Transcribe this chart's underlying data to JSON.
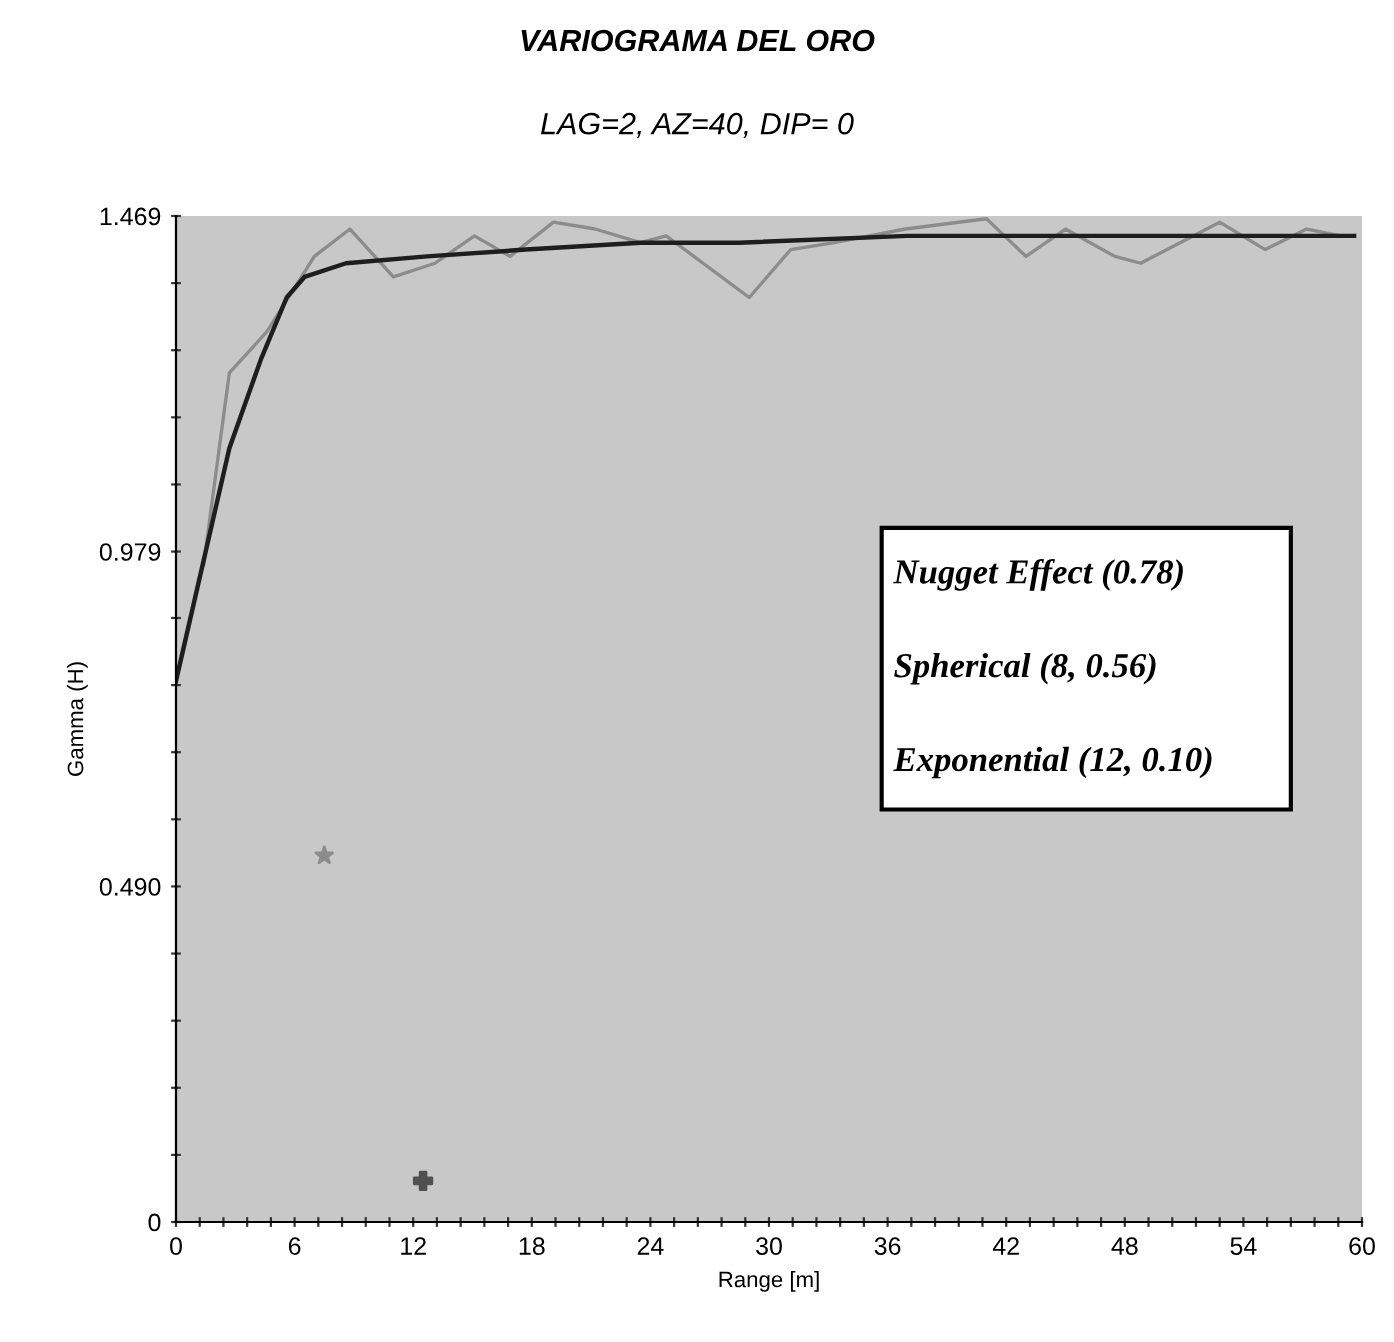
{
  "chart_data": {
    "type": "line",
    "title": "VARIOGRAMA DEL ORO",
    "subtitle": "LAG=2, AZ=40, DIP= 0",
    "xlabel": "Range [m]",
    "ylabel": "Gamma (H)",
    "series": [
      {
        "color": "#8c8c8c",
        "x": [
          1.4,
          2.7,
          4.6,
          7.0,
          8.8,
          11.0,
          13.1,
          15.1,
          16.9,
          19.1,
          21.2,
          23.5,
          24.8,
          29.0,
          31.1,
          33.3,
          36.9,
          41.0,
          43.0,
          45.0,
          47.5,
          48.8,
          52.8,
          55.1,
          57.2,
          58.9
        ],
        "values": [
          0.96,
          1.24,
          1.3,
          1.41,
          1.45,
          1.38,
          1.4,
          1.44,
          1.41,
          1.46,
          1.45,
          1.43,
          1.44,
          1.35,
          1.42,
          1.43,
          1.45,
          1.465,
          1.41,
          1.45,
          1.41,
          1.4,
          1.46,
          1.42,
          1.45,
          1.44
        ]
      },
      {
        "color": "#1e1e1e",
        "x": [
          0,
          2.7,
          4.3,
          5.6,
          6.5,
          8.6,
          12.7,
          17.7,
          23.5,
          28.5,
          37,
          59.6
        ],
        "values": [
          0.79,
          1.13,
          1.26,
          1.35,
          1.38,
          1.4,
          1.41,
          1.42,
          1.43,
          1.43,
          1.44,
          1.44
        ]
      },
      {
        "type": "scatter",
        "marker": "star",
        "color": "#8c8c8c",
        "x": [
          7.5
        ],
        "values": [
          0.535
        ]
      },
      {
        "type": "scatter",
        "marker": "cross",
        "color": "#505050",
        "x": [
          12.5
        ],
        "values": [
          0.06
        ]
      }
    ],
    "xlim": [
      0,
      60
    ],
    "xticks": [
      0,
      {
        "value": 1.2,
        "label": null
      },
      {
        "value": 2.4,
        "label": null
      },
      {
        "value": 3.6,
        "label": null
      },
      {
        "value": 4.8,
        "label": null
      },
      6,
      {
        "value": 7.2,
        "label": null
      },
      {
        "value": 8.4,
        "label": null
      },
      {
        "value": 9.6,
        "label": null
      },
      {
        "value": 10.8,
        "label": null
      },
      12,
      {
        "value": 13.2,
        "label": null
      },
      {
        "value": 14.4,
        "label": null
      },
      {
        "value": 15.6,
        "label": null
      },
      {
        "value": 16.8,
        "label": null
      },
      18,
      {
        "value": 19.2,
        "label": null
      },
      {
        "value": 20.4,
        "label": null
      },
      {
        "value": 21.6,
        "label": null
      },
      {
        "value": 22.8,
        "label": null
      },
      24,
      {
        "value": 25.2,
        "label": null
      },
      {
        "value": 26.4,
        "label": null
      },
      {
        "value": 27.6,
        "label": null
      },
      {
        "value": 28.8,
        "label": null
      },
      30,
      {
        "value": 31.2,
        "label": null
      },
      {
        "value": 32.4,
        "label": null
      },
      {
        "value": 33.6,
        "label": null
      },
      {
        "value": 34.8,
        "label": null
      },
      36,
      {
        "value": 37.2,
        "label": null
      },
      {
        "value": 38.4,
        "label": null
      },
      {
        "value": 39.6,
        "label": null
      },
      {
        "value": 40.8,
        "label": null
      },
      42,
      {
        "value": 43.2,
        "label": null
      },
      {
        "value": 44.4,
        "label": null
      },
      {
        "value": 45.6,
        "label": null
      },
      {
        "value": 46.8,
        "label": null
      },
      48,
      {
        "value": 49.2,
        "label": null
      },
      {
        "value": 50.4,
        "label": null
      },
      {
        "value": 51.6,
        "label": null
      },
      {
        "value": 52.8,
        "label": null
      },
      54,
      {
        "value": 55.2,
        "label": null
      },
      {
        "value": 56.4,
        "label": null
      },
      {
        "value": 57.6,
        "label": null
      },
      {
        "value": 58.8,
        "label": null
      },
      60
    ],
    "ylim": [
      0,
      1.469
    ],
    "yticks": [
      {
        "value": 0,
        "label": "0"
      },
      {
        "value": 0.098,
        "label": null
      },
      {
        "value": 0.196,
        "label": null
      },
      {
        "value": 0.294,
        "label": null
      },
      {
        "value": 0.392,
        "label": null
      },
      {
        "value": 0.49,
        "label": "0.490"
      },
      {
        "value": 0.588,
        "label": null
      },
      {
        "value": 0.686,
        "label": null
      },
      {
        "value": 0.784,
        "label": null
      },
      {
        "value": 0.882,
        "label": null
      },
      {
        "value": 0.979,
        "label": "0.979"
      },
      {
        "value": 1.077,
        "label": null
      },
      {
        "value": 1.175,
        "label": null
      },
      {
        "value": 1.273,
        "label": null
      },
      {
        "value": 1.371,
        "label": null
      },
      {
        "value": 1.469,
        "label": "1.469"
      }
    ],
    "grid": false,
    "legend": false,
    "annotations": [
      "Nugget Effect (0.78)",
      "Spherical (8, 0.56)",
      "Exponential (12, 0.10)"
    ]
  }
}
